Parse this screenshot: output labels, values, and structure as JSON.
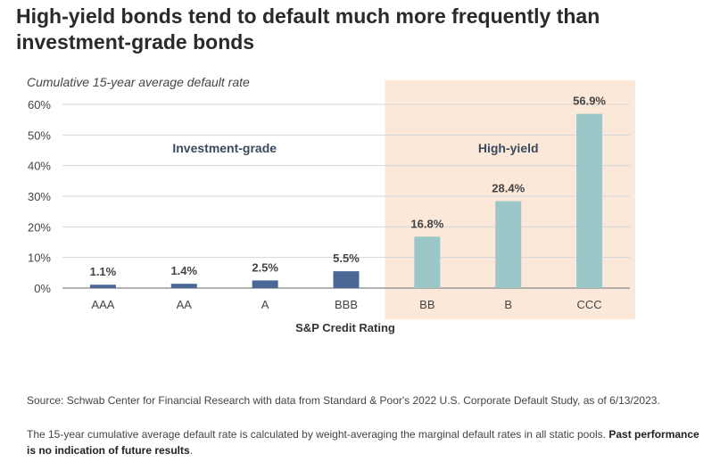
{
  "title": "High-yield bonds tend to default much more frequently than investment-grade bonds",
  "source": "Source: Schwab Center for Financial Research with data from Standard & Poor's 2022 U.S. Corporate Default Study, as of 6/13/2023.",
  "note": {
    "text": "The 15-year cumulative average default rate is calculated by weight-averaging the marginal default rates in all static pools. ",
    "bold": "Past performance is no indication of future results",
    "end": "."
  },
  "chart_data": {
    "type": "bar",
    "subtitle": "Cumulative 15-year average default rate",
    "xlabel": "S&P Credit Rating",
    "categories": [
      "AAA",
      "AA",
      "A",
      "BBB",
      "BB",
      "B",
      "CCC"
    ],
    "values": [
      1.1,
      1.4,
      2.5,
      5.5,
      16.8,
      28.4,
      56.9
    ],
    "data_labels": [
      "1.1%",
      "1.4%",
      "2.5%",
      "5.5%",
      "16.8%",
      "28.4%",
      "56.9%"
    ],
    "ylim": [
      0,
      60
    ],
    "yticks": [
      0,
      10,
      20,
      30,
      40,
      50,
      60
    ],
    "ytick_labels": [
      "0%",
      "10%",
      "20%",
      "30%",
      "40%",
      "50%",
      "60%"
    ],
    "grid": true,
    "groups": [
      {
        "label": "Investment-grade",
        "categories": [
          "AAA",
          "AA",
          "A",
          "BBB"
        ],
        "color": "#4a6896",
        "shaded": false
      },
      {
        "label": "High-yield",
        "categories": [
          "BB",
          "B",
          "CCC"
        ],
        "color": "#9bc7c9",
        "shaded": true,
        "shade_color": "#fbe8d9"
      }
    ],
    "gridline_color": "#d6d6d6",
    "axis_color": "#999999"
  }
}
